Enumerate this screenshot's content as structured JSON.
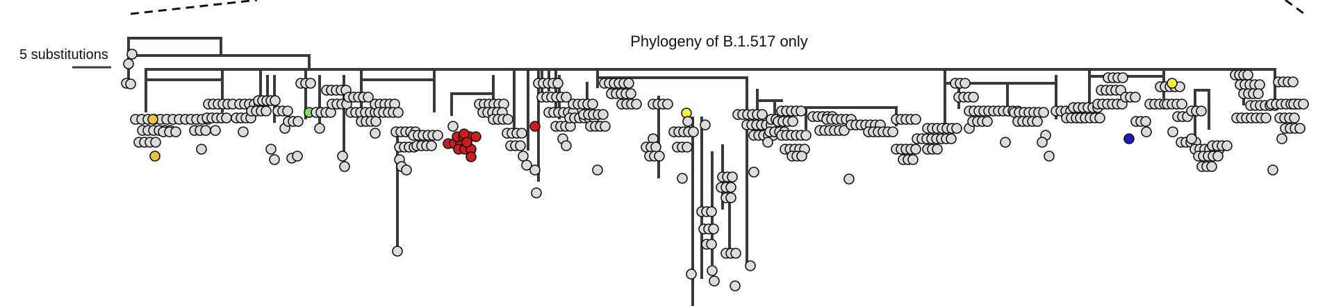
{
  "figure": {
    "title": "Phylogeny of B.1.517 only",
    "scale_bar_label": "5 substitutions"
  },
  "colors": {
    "branch": "#3a3a3a",
    "tip_default": "#dcdcdc",
    "tip_red": "#d01c1c",
    "tip_yellow": "#f5ef3a",
    "tip_gold": "#e8c53a",
    "tip_green": "#7ee05a",
    "tip_blue": "#2318c8"
  }
}
